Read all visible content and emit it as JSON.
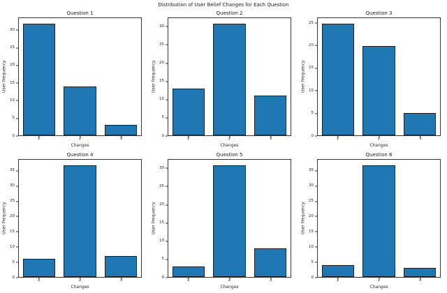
{
  "figure": {
    "title": "Distribution of User Belief Changes for Each Question"
  },
  "style": {
    "bar_color": "#1f77b4",
    "bar_edge_color": "#1c1c1c",
    "axis_color": "#333333"
  },
  "chart_data": [
    {
      "type": "bar",
      "title": "Question 1",
      "categories": [
        "1",
        "2",
        "3"
      ],
      "values": [
        32,
        14,
        3
      ],
      "xlabel": "Changes",
      "ylabel": "User Frequency",
      "ylim": [
        0,
        33.6
      ],
      "yticks": [
        0,
        5,
        10,
        15,
        20,
        25,
        30
      ],
      "grid": false,
      "legend": "none"
    },
    {
      "type": "bar",
      "title": "Question 2",
      "categories": [
        "1",
        "2",
        "3"
      ],
      "values": [
        13,
        31,
        11
      ],
      "xlabel": "Changes",
      "ylabel": "User Frequency",
      "ylim": [
        0,
        32.55
      ],
      "yticks": [
        0,
        5,
        10,
        15,
        20,
        25,
        30
      ],
      "grid": false,
      "legend": "none"
    },
    {
      "type": "bar",
      "title": "Question 3",
      "categories": [
        "1",
        "2",
        "3"
      ],
      "values": [
        25,
        20,
        5
      ],
      "xlabel": "Changes",
      "ylabel": "User Frequency",
      "ylim": [
        0,
        26.25
      ],
      "yticks": [
        0,
        5,
        10,
        15,
        20,
        25
      ],
      "grid": false,
      "legend": "none"
    },
    {
      "type": "bar",
      "title": "Question 4",
      "categories": [
        "1",
        "2",
        "3"
      ],
      "values": [
        6,
        37,
        7
      ],
      "xlabel": "Changes",
      "ylabel": "User Frequency",
      "ylim": [
        0,
        38.85
      ],
      "yticks": [
        0,
        5,
        10,
        15,
        20,
        25,
        30,
        35
      ],
      "grid": false,
      "legend": "none"
    },
    {
      "type": "bar",
      "title": "Question 5",
      "categories": [
        "1",
        "2",
        "3"
      ],
      "values": [
        3,
        31,
        8
      ],
      "xlabel": "Changes",
      "ylabel": "User Frequency",
      "ylim": [
        0,
        32.55
      ],
      "yticks": [
        0,
        5,
        10,
        15,
        20,
        25,
        30
      ],
      "grid": false,
      "legend": "none"
    },
    {
      "type": "bar",
      "title": "Question 6",
      "categories": [
        "1",
        "2",
        "3"
      ],
      "values": [
        4,
        37,
        3
      ],
      "xlabel": "Changes",
      "ylabel": "User Frequency",
      "ylim": [
        0,
        38.85
      ],
      "yticks": [
        0,
        5,
        10,
        15,
        20,
        25,
        30,
        35
      ],
      "grid": false,
      "legend": "none"
    }
  ]
}
